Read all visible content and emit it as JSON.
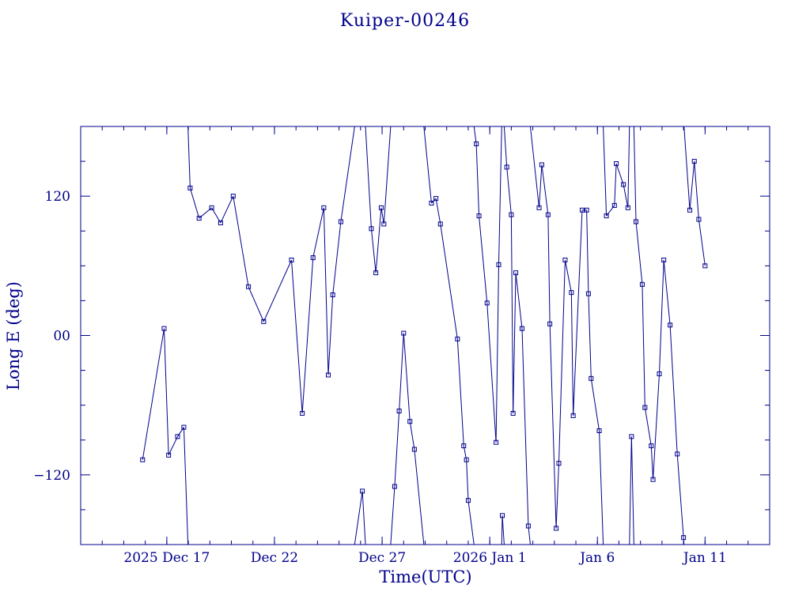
{
  "chart_data": {
    "type": "line",
    "title": "Kuiper-00246",
    "xlabel": "Time(UTC)",
    "ylabel": "Long E (deg)",
    "xlim": [
      "2025-12-13T00:00",
      "2026-01-14T00:00"
    ],
    "ylim": [
      -180,
      180
    ],
    "x_tick_labels": [
      {
        "date": "2025-12-17T00:00",
        "label": "2025 Dec 17"
      },
      {
        "date": "2025-12-22T00:00",
        "label": "Dec 22"
      },
      {
        "date": "2025-12-27T00:00",
        "label": "Dec 27"
      },
      {
        "date": "2026-01-01T00:00",
        "label": "2026 Jan  1"
      },
      {
        "date": "2026-01-06T00:00",
        "label": "Jan  6"
      },
      {
        "date": "2026-01-11T00:00",
        "label": "Jan 11"
      }
    ],
    "y_tick_labels": [
      {
        "value": 120,
        "label": "120"
      },
      {
        "value": 0,
        "label": "00"
      },
      {
        "value": -120,
        "label": "−120"
      }
    ],
    "colors": {
      "line": "#00008b",
      "axes": "#00008b",
      "background": "#ffffff"
    },
    "grid": false,
    "series": [
      {
        "points": [
          [
            "2025-12-15T21:00",
            -107
          ],
          [
            "2025-12-16T21:00",
            6
          ],
          [
            "2025-12-17T02:00",
            -103
          ],
          [
            "2025-12-17T12:00",
            -87
          ],
          [
            "2025-12-17T19:00",
            -79
          ],
          [
            "2025-12-18T02:00",
            127
          ],
          [
            "2025-12-18T12:00",
            101
          ],
          [
            "2025-12-19T02:00",
            110
          ],
          [
            "2025-12-19T12:00",
            97
          ],
          [
            "2025-12-20T02:00",
            120
          ],
          [
            "2025-12-20T19:00",
            42
          ],
          [
            "2025-12-21T12:00",
            12
          ],
          [
            "2025-12-22T19:00",
            65
          ],
          [
            "2025-12-23T07:00",
            -67
          ],
          [
            "2025-12-23T19:00",
            67
          ],
          [
            "2025-12-24T07:00",
            110
          ],
          [
            "2025-12-24T12:00",
            -34
          ],
          [
            "2025-12-24T17:00",
            35
          ],
          [
            "2025-12-25T02:00",
            98
          ],
          [
            "2025-12-26T02:00",
            -134
          ],
          [
            "2025-12-26T12:00",
            92
          ],
          [
            "2025-12-26T17:00",
            54
          ],
          [
            "2025-12-26T23:00",
            110
          ],
          [
            "2025-12-27T02:00",
            96
          ],
          [
            "2025-12-27T14:00",
            -130
          ],
          [
            "2025-12-27T19:00",
            -65
          ],
          [
            "2025-12-28T00:00",
            2
          ],
          [
            "2025-12-28T07:00",
            -74
          ],
          [
            "2025-12-28T12:00",
            -98
          ],
          [
            "2025-12-29T07:00",
            114
          ],
          [
            "2025-12-29T12:00",
            118
          ],
          [
            "2025-12-29T17:00",
            96
          ],
          [
            "2025-12-30T12:00",
            -3
          ],
          [
            "2025-12-30T19:00",
            -95
          ],
          [
            "2025-12-30T22:00",
            -107
          ],
          [
            "2025-12-31T00:00",
            -142
          ],
          [
            "2025-12-31T09:00",
            165
          ],
          [
            "2025-12-31T12:00",
            103
          ],
          [
            "2025-12-31T21:00",
            28
          ],
          [
            "2026-01-01T07:00",
            -92
          ],
          [
            "2026-01-01T10:00",
            61
          ],
          [
            "2026-01-01T14:00",
            -155
          ],
          [
            "2026-01-01T19:00",
            145
          ],
          [
            "2026-01-02T00:00",
            104
          ],
          [
            "2026-01-02T02:00",
            -67
          ],
          [
            "2026-01-02T05:00",
            54
          ],
          [
            "2026-01-02T12:00",
            6
          ],
          [
            "2026-01-02T19:00",
            -164
          ],
          [
            "2026-01-03T07:00",
            110
          ],
          [
            "2026-01-03T10:00",
            147
          ],
          [
            "2026-01-03T17:00",
            104
          ],
          [
            "2026-01-03T19:00",
            10
          ],
          [
            "2026-01-04T02:00",
            -166
          ],
          [
            "2026-01-04T05:00",
            -110
          ],
          [
            "2026-01-04T12:00",
            65
          ],
          [
            "2026-01-04T19:00",
            37
          ],
          [
            "2026-01-04T21:00",
            -69
          ],
          [
            "2026-01-05T07:00",
            108
          ],
          [
            "2026-01-05T12:00",
            108
          ],
          [
            "2026-01-05T14:00",
            36
          ],
          [
            "2026-01-05T17:00",
            -37
          ],
          [
            "2026-01-06T02:00",
            -82
          ],
          [
            "2026-01-06T10:00",
            103
          ],
          [
            "2026-01-06T19:00",
            112
          ],
          [
            "2026-01-06T21:00",
            148
          ],
          [
            "2026-01-07T05:00",
            130
          ],
          [
            "2026-01-07T10:00",
            110
          ],
          [
            "2026-01-07T14:00",
            -87
          ],
          [
            "2026-01-07T19:00",
            98
          ],
          [
            "2026-01-08T02:00",
            44
          ],
          [
            "2026-01-08T05:00",
            -62
          ],
          [
            "2026-01-08T12:00",
            -95
          ],
          [
            "2026-01-08T14:00",
            -124
          ],
          [
            "2026-01-08T21:00",
            -33
          ],
          [
            "2026-01-09T02:00",
            65
          ],
          [
            "2026-01-09T09:00",
            9
          ],
          [
            "2026-01-09T17:00",
            -102
          ],
          [
            "2026-01-10T00:00",
            -174
          ],
          [
            "2026-01-10T07:00",
            108
          ],
          [
            "2026-01-10T12:00",
            150
          ],
          [
            "2026-01-10T17:00",
            100
          ],
          [
            "2026-01-11T00:00",
            60
          ]
        ]
      }
    ]
  }
}
